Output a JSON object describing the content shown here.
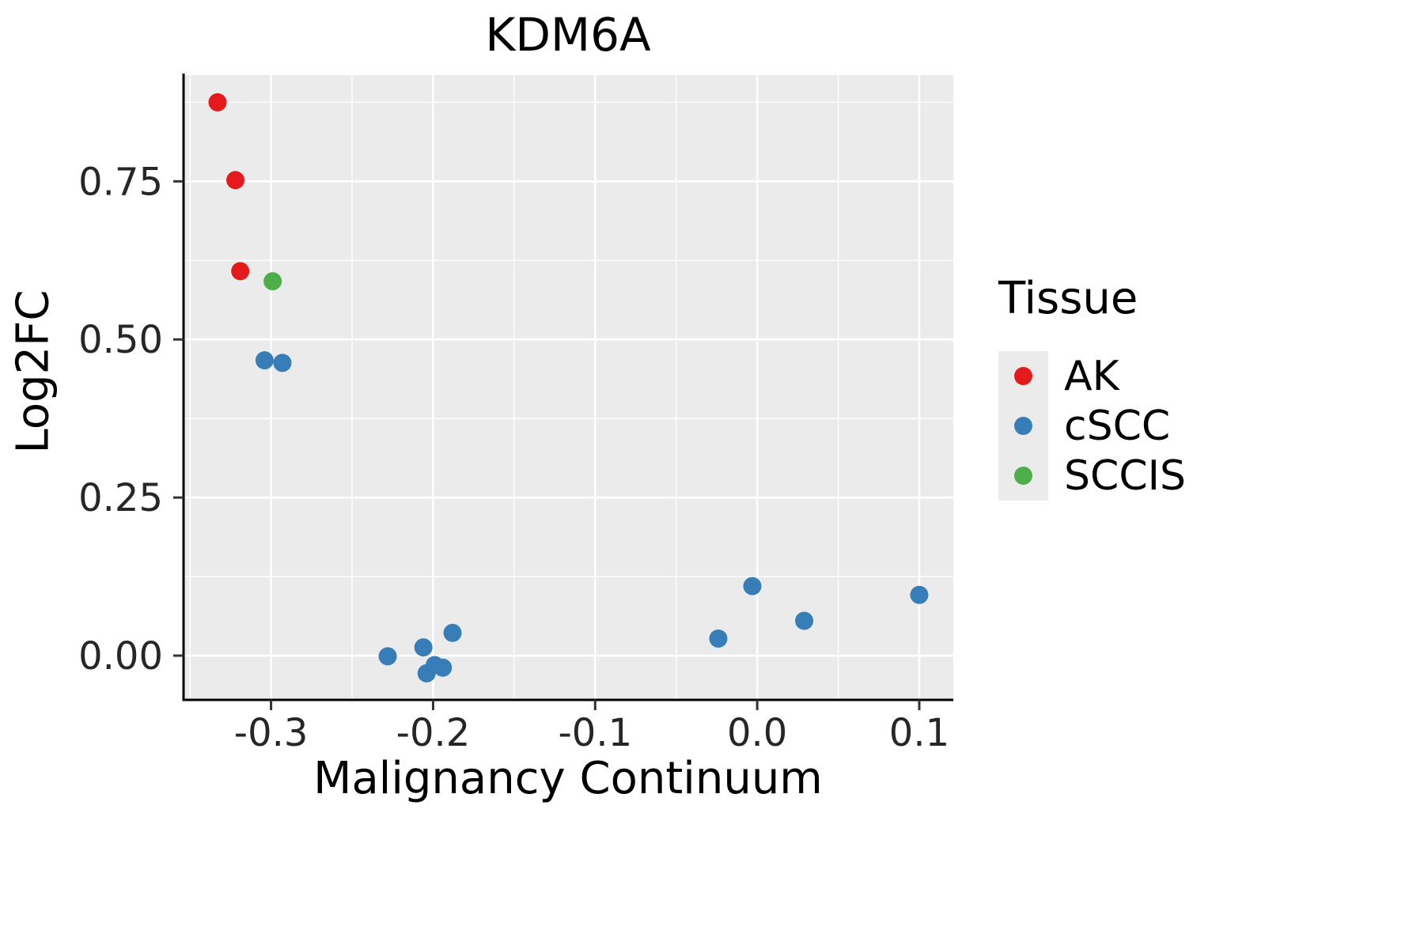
{
  "chart_data": {
    "type": "scatter",
    "title": "KDM6A",
    "xlabel": "Malignancy Continuum",
    "ylabel": "Log2FC",
    "panel_bg": "#EBEBEB",
    "grid_color": "#FFFFFF",
    "axis_color": "#000000",
    "tick_color": "#333333",
    "xlim": [
      -0.354,
      0.121
    ],
    "ylim": [
      -0.07,
      0.918
    ],
    "x_ticks": {
      "values": [
        -0.3,
        -0.2,
        -0.1,
        0.0,
        0.1
      ],
      "labels": [
        "-0.3",
        "-0.2",
        "-0.1",
        "0.0",
        "0.1"
      ]
    },
    "y_ticks": {
      "values": [
        0.0,
        0.25,
        0.5,
        0.75
      ],
      "labels": [
        "0.00",
        "0.25",
        "0.50",
        "0.75"
      ]
    },
    "x_minor": [
      -0.35,
      -0.25,
      -0.15,
      -0.05,
      0.05
    ],
    "y_minor": [
      0.125,
      0.375,
      0.625,
      0.875
    ],
    "legend": {
      "title": "Tissue",
      "position": "right"
    },
    "series": [
      {
        "name": "AK",
        "color": "#E41A1C",
        "points": [
          [
            -0.333,
            0.875
          ],
          [
            -0.322,
            0.752
          ],
          [
            -0.319,
            0.608
          ]
        ]
      },
      {
        "name": "cSCC",
        "color": "#377EB8",
        "points": [
          [
            -0.304,
            0.467
          ],
          [
            -0.293,
            0.463
          ],
          [
            -0.228,
            -0.001
          ],
          [
            -0.206,
            0.013
          ],
          [
            -0.204,
            -0.028
          ],
          [
            -0.199,
            -0.015
          ],
          [
            -0.194,
            -0.019
          ],
          [
            -0.188,
            0.036
          ],
          [
            -0.024,
            0.027
          ],
          [
            -0.003,
            0.11
          ],
          [
            0.029,
            0.055
          ],
          [
            0.1,
            0.096
          ]
        ]
      },
      {
        "name": "SCCIS",
        "color": "#4DAF4A",
        "points": [
          [
            -0.299,
            0.592
          ]
        ]
      }
    ]
  }
}
